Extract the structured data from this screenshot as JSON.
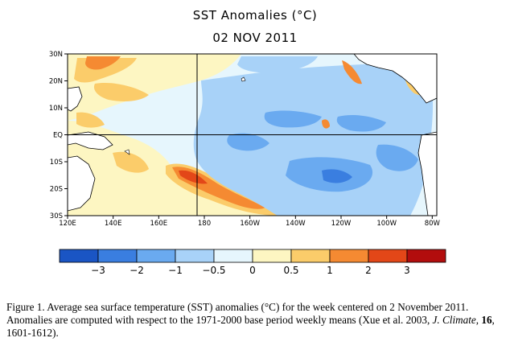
{
  "title": "SST Anomalies (°C)",
  "date": "02 NOV 2011",
  "map": {
    "lat_ticks": [
      "30N",
      "20N",
      "10N",
      "EQ",
      "10S",
      "20S",
      "30S"
    ],
    "lon_ticks": [
      "120E",
      "140E",
      "160E",
      "180",
      "160W",
      "140W",
      "120W",
      "100W",
      "80W"
    ],
    "lat_range": [
      -30,
      30
    ],
    "lon_range_deg_east": [
      120,
      282
    ],
    "reference_lines": [
      "Equator",
      "180° meridian"
    ]
  },
  "colorbar": {
    "labels": [
      "-3",
      "-2",
      "-1",
      "-0.5",
      "0",
      "0.5",
      "1",
      "2",
      "3"
    ],
    "colors": [
      "#1a55c4",
      "#3a7ee0",
      "#6aaaf0",
      "#a8d2f8",
      "#e6f6fd",
      "#fdf6c2",
      "#fbcc6a",
      "#f58a32",
      "#e34718",
      "#b20d0d"
    ]
  },
  "caption": {
    "label": "Figure 1.",
    "text_before_italic": "Average sea surface temperature (SST) anomalies (°C) for the week centered on 2 November 2011.   Anomalies are computed with respect to the 1971-2000 base period weekly means (Xue et al. 2003, ",
    "journal": "J. Climate",
    "sep": ", ",
    "volume": "16",
    "pages": ", 1601-1612)."
  },
  "chart_data": {
    "type": "heatmap",
    "title": "SST Anomalies (°C)",
    "subtitle": "02 NOV 2011",
    "x_range": [
      "120E",
      "80W"
    ],
    "y_range": [
      "30S",
      "30N"
    ],
    "color_scale_levels": [
      -3,
      -2,
      -1,
      -0.5,
      0,
      0.5,
      1,
      2,
      3
    ],
    "units": "°C"
  }
}
